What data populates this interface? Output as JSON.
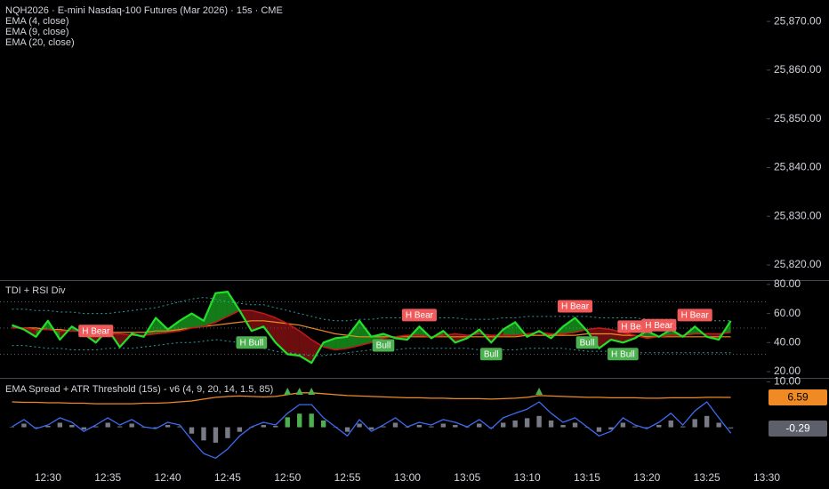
{
  "chart_data": [
    {
      "type": "price",
      "title": "NQH2026 · E-mini Nasdaq-100 Futures (Mar 2026) · 15s · CME",
      "indicators": [
        "EMA (4, close)",
        "EMA (9, close)",
        "EMA (20, close)"
      ],
      "ylim": [
        25816.9,
        25874.4
      ],
      "yticks": [
        {
          "value": 25870,
          "label": "25,870.00"
        },
        {
          "value": 25860,
          "label": "25,860.00"
        },
        {
          "value": 25850,
          "label": "25,850.00"
        },
        {
          "value": 25840,
          "label": "25,840.00"
        },
        {
          "value": 25830,
          "label": "25,830.00"
        },
        {
          "value": 25820,
          "label": "25,820.00"
        }
      ]
    },
    {
      "type": "tdi",
      "title": "TDI + RSI Div",
      "x": [
        "12:27",
        "12:28",
        "12:29",
        "12:30",
        "12:31",
        "12:32",
        "12:33",
        "12:34",
        "12:35",
        "12:36",
        "12:37",
        "12:38",
        "12:39",
        "12:40",
        "12:41",
        "12:42",
        "12:43",
        "12:44",
        "12:45",
        "12:46",
        "12:47",
        "12:48",
        "12:49",
        "12:50",
        "12:51",
        "12:52",
        "12:53",
        "12:54",
        "12:55",
        "12:56",
        "12:57",
        "12:58",
        "12:59",
        "13:00",
        "13:01",
        "13:02",
        "13:03",
        "13:04",
        "13:05",
        "13:06",
        "13:07",
        "13:08",
        "13:09",
        "13:10",
        "13:11",
        "13:12",
        "13:13",
        "13:14",
        "13:15",
        "13:16",
        "13:17",
        "13:18",
        "13:19",
        "13:20",
        "13:21",
        "13:22",
        "13:23",
        "13:24",
        "13:25",
        "13:26",
        "13:27"
      ],
      "xlim": [
        "12:26",
        "13:30"
      ],
      "ylim": [
        15.7,
        82.4
      ],
      "yticks": [
        {
          "value": 80,
          "label": "80.00"
        },
        {
          "value": 60,
          "label": "60.00"
        },
        {
          "value": 40,
          "label": "40.00"
        },
        {
          "value": 20,
          "label": "20.00"
        }
      ],
      "levels": [
        68,
        50,
        32
      ],
      "level_color": "#5d606b",
      "fill_between": [
        0,
        1
      ],
      "series": [
        {
          "color": "#22e02a",
          "width": 2.2,
          "values": [
            52,
            49,
            44,
            55,
            42,
            51,
            46,
            40,
            49,
            37,
            46,
            44,
            57,
            49,
            55,
            60,
            55,
            74,
            75,
            62,
            48,
            51,
            40,
            32,
            31,
            26,
            40,
            43,
            44,
            55,
            44,
            46,
            43,
            42,
            51,
            43,
            48,
            40,
            43,
            49,
            40,
            49,
            54,
            44,
            48,
            43,
            51,
            57,
            48,
            36,
            42,
            40,
            43,
            48,
            44,
            49,
            44,
            51,
            44,
            42,
            55
          ]
        },
        {
          "color": "#c4171b",
          "width": 1.5,
          "values": [
            50,
            50,
            49,
            49,
            48,
            48,
            48,
            47,
            46,
            46,
            45,
            45,
            46,
            47,
            48,
            50,
            51,
            54,
            58,
            62,
            62,
            60,
            57,
            53,
            48,
            42,
            37,
            35,
            36,
            38,
            40,
            43,
            44,
            45,
            45,
            44,
            45,
            46,
            45,
            46,
            45,
            45,
            45,
            46,
            47,
            46,
            46,
            47,
            49,
            50,
            49,
            47,
            45,
            43,
            44,
            45,
            45,
            46,
            46,
            46,
            47
          ]
        },
        {
          "color": "#f08a24",
          "width": 1.2,
          "values": [
            50,
            50,
            50,
            49,
            49,
            48,
            48,
            48,
            47,
            47,
            47,
            47,
            48,
            48,
            49,
            50,
            51,
            52,
            53,
            54,
            55,
            55,
            54,
            53,
            52,
            50,
            48,
            46,
            45,
            44,
            44,
            44,
            44,
            44,
            44,
            44,
            44,
            44,
            44,
            44,
            44,
            44,
            44,
            45,
            45,
            45,
            45,
            45,
            46,
            46,
            46,
            45,
            45,
            44,
            44,
            44,
            44,
            44,
            44,
            44,
            44
          ]
        },
        {
          "color": "#2a9d9a",
          "width": 1,
          "style": "dotted",
          "values": [
            63,
            63,
            62,
            62,
            61,
            61,
            60,
            60,
            60,
            61,
            62,
            63,
            64,
            66,
            68,
            70,
            71,
            70,
            68,
            67,
            66,
            66,
            64,
            62,
            60,
            58,
            56,
            55,
            55,
            56,
            56,
            57,
            57,
            57,
            57,
            57,
            57,
            57,
            56,
            56,
            56,
            57,
            57,
            58,
            58,
            58,
            58,
            58,
            58,
            57,
            57,
            57,
            57,
            56,
            56,
            56,
            55,
            55,
            55,
            55,
            55
          ]
        },
        {
          "color": "#2a9d9a",
          "width": 1,
          "style": "dotted",
          "values": [
            38,
            38,
            37,
            36,
            36,
            35,
            35,
            35,
            36,
            36,
            36,
            37,
            38,
            39,
            40,
            40,
            41,
            42,
            41,
            40,
            38,
            36,
            34,
            33,
            32,
            31,
            31,
            32,
            33,
            34,
            35,
            35,
            35,
            36,
            36,
            36,
            36,
            36,
            36,
            35,
            35,
            35,
            35,
            36,
            36,
            36,
            36,
            35,
            34,
            34,
            34,
            34,
            33,
            33,
            33,
            33,
            33,
            33,
            33,
            33,
            33
          ]
        }
      ],
      "annotations": [
        {
          "text": "H Bear",
          "x": "12:34",
          "color": "#f05a5a",
          "placement": "above"
        },
        {
          "text": "H Bull",
          "x": "12:47",
          "color": "#4caf50",
          "placement": "below"
        },
        {
          "text": "Bull",
          "x": "12:58",
          "color": "#4caf50",
          "placement": "below"
        },
        {
          "text": "H Bear",
          "x": "13:01",
          "color": "#f05a5a",
          "placement": "above"
        },
        {
          "text": "Bull",
          "x": "13:07",
          "color": "#4caf50",
          "placement": "below"
        },
        {
          "text": "H Bear",
          "x": "13:14",
          "color": "#f05a5a",
          "placement": "above"
        },
        {
          "text": "Bull",
          "x": "13:15",
          "color": "#4caf50",
          "placement": "below"
        },
        {
          "text": "H Bull",
          "x": "13:18",
          "color": "#4caf50",
          "placement": "below"
        },
        {
          "text": "H Bear",
          "x": "13:19",
          "color": "#f05a5a",
          "placement": "above"
        },
        {
          "text": "H Bear",
          "x": "13:21",
          "color": "#f05a5a",
          "placement": "above"
        },
        {
          "text": "H Bear",
          "x": "13:24",
          "color": "#f05a5a",
          "placement": "above"
        }
      ]
    },
    {
      "type": "spread",
      "title": "EMA Spread + ATR Threshold (15s) - v6 (4, 9, 20, 14, 1.5, 85)",
      "x": [
        "12:27",
        "12:28",
        "12:29",
        "12:30",
        "12:31",
        "12:32",
        "12:33",
        "12:34",
        "12:35",
        "12:36",
        "12:37",
        "12:38",
        "12:39",
        "12:40",
        "12:41",
        "12:42",
        "12:43",
        "12:44",
        "12:45",
        "12:46",
        "12:47",
        "12:48",
        "12:49",
        "12:50",
        "12:51",
        "12:52",
        "12:53",
        "12:54",
        "12:55",
        "12:56",
        "12:57",
        "12:58",
        "12:59",
        "13:00",
        "13:01",
        "13:02",
        "13:03",
        "13:04",
        "13:05",
        "13:06",
        "13:07",
        "13:08",
        "13:09",
        "13:10",
        "13:11",
        "13:12",
        "13:13",
        "13:14",
        "13:15",
        "13:16",
        "13:17",
        "13:18",
        "13:19",
        "13:20",
        "13:21",
        "13:22",
        "13:23",
        "13:24",
        "13:25",
        "13:26",
        "13:27"
      ],
      "xlim": [
        "12:26",
        "13:30"
      ],
      "xticks": [
        "12:30",
        "12:35",
        "12:40",
        "12:45",
        "12:50",
        "12:55",
        "13:00",
        "13:05",
        "13:10",
        "13:15",
        "13:20",
        "13:25",
        "13:30"
      ],
      "ylim": [
        -9.3,
        10.7
      ],
      "yticks": [
        {
          "value": 10,
          "label": "10.00"
        }
      ],
      "series": [
        {
          "type": "bar",
          "last_label": true,
          "values": [
            0.1,
            0.8,
            -0.2,
            0.3,
            1.0,
            0.5,
            -0.5,
            0.2,
            1.0,
            0.2,
            0.8,
            0.0,
            -0.2,
            0.5,
            0.2,
            -1.4,
            -2.9,
            -3.4,
            -2.4,
            -1.0,
            0.0,
            0.5,
            0.3,
            2.2,
            3.0,
            3.0,
            1.5,
            0.1,
            -1.0,
            0.8,
            -0.5,
            0.2,
            1.0,
            0.0,
            0.5,
            0.2,
            0.8,
            0.5,
            0.0,
            0.8,
            -0.2,
            1.0,
            1.5,
            2.0,
            2.5,
            1.5,
            0.5,
            1.0,
            0.0,
            -1.0,
            -0.5,
            1.0,
            0.2,
            -0.2,
            0.5,
            1.5,
            0.2,
            1.8,
            2.5,
            1.0,
            -0.29
          ],
          "colors": [
            "#787b86",
            "#787b86",
            "#787b86",
            "#787b86",
            "#787b86",
            "#787b86",
            "#787b86",
            "#787b86",
            "#787b86",
            "#787b86",
            "#787b86",
            "#787b86",
            "#787b86",
            "#787b86",
            "#787b86",
            "#787b86",
            "#787b86",
            "#787b86",
            "#787b86",
            "#787b86",
            "#787b86",
            "#787b86",
            "#787b86",
            "#4caf50",
            "#4caf50",
            "#4caf50",
            "#4caf50",
            "#787b86",
            "#787b86",
            "#787b86",
            "#787b86",
            "#787b86",
            "#787b86",
            "#787b86",
            "#787b86",
            "#787b86",
            "#787b86",
            "#787b86",
            "#787b86",
            "#787b86",
            "#787b86",
            "#787b86",
            "#787b86",
            "#787b86",
            "#787b86",
            "#787b86",
            "#787b86",
            "#787b86",
            "#787b86",
            "#787b86",
            "#787b86",
            "#787b86",
            "#787b86",
            "#787b86",
            "#787b86",
            "#787b86",
            "#787b86",
            "#787b86",
            "#787b86",
            "#787b86",
            "#5d606b"
          ]
        },
        {
          "type": "line",
          "color": "#3d6bf0",
          "values": [
            0.1,
            1.7,
            -0.3,
            0.5,
            2.1,
            1.1,
            -0.9,
            0.5,
            2.1,
            0.5,
            1.7,
            0.1,
            -0.3,
            1.1,
            0.5,
            -2.8,
            -5.8,
            -6.8,
            -4.8,
            -1.9,
            0.1,
            1.1,
            0.5,
            3.1,
            5.0,
            5.0,
            2.1,
            0.1,
            -1.9,
            1.7,
            -0.9,
            0.5,
            2.1,
            0.1,
            1.1,
            0.5,
            1.7,
            1.1,
            0.1,
            1.7,
            -0.3,
            2.1,
            3.1,
            4.0,
            5.6,
            3.1,
            1.1,
            2.1,
            0.1,
            -1.9,
            -0.9,
            2.1,
            0.5,
            -0.3,
            1.1,
            3.1,
            0.5,
            3.6,
            5.6,
            2.1,
            -1.3
          ]
        },
        {
          "type": "line",
          "color": "#f08a24",
          "last_label": true,
          "values": [
            5.6,
            5.5,
            5.5,
            5.4,
            5.4,
            5.3,
            5.3,
            5.2,
            5.2,
            5.2,
            5.2,
            5.3,
            5.3,
            5.4,
            5.6,
            5.8,
            6.2,
            6.6,
            6.8,
            6.9,
            6.8,
            6.7,
            6.8,
            7.2,
            7.6,
            7.6,
            7.4,
            7.2,
            7.0,
            6.9,
            6.8,
            6.7,
            6.6,
            6.5,
            6.5,
            6.4,
            6.4,
            6.3,
            6.3,
            6.3,
            6.2,
            6.3,
            6.4,
            6.6,
            7.0,
            6.9,
            6.8,
            6.7,
            6.6,
            6.6,
            6.5,
            6.5,
            6.5,
            6.4,
            6.4,
            6.5,
            6.5,
            6.5,
            6.6,
            6.6,
            6.59
          ]
        }
      ],
      "signals": [
        "12:50",
        "12:51",
        "12:52",
        "13:11"
      ],
      "signal_color": "#4caf50"
    }
  ]
}
